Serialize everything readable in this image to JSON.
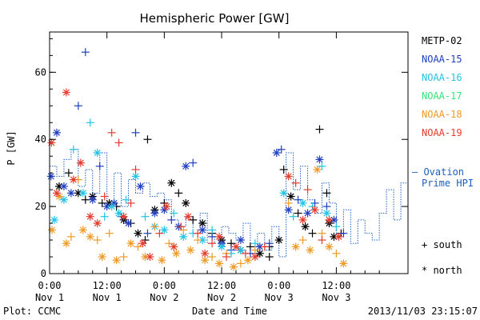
{
  "chart_data": {
    "type": "scatter",
    "title": "Hemispheric Power [GW]",
    "xlabel": "Date and Time",
    "ylabel": "P [GW]",
    "ylim": [
      0,
      72
    ],
    "xlim": [
      "2013-11-01 00:00",
      "2013-11-04 03:00"
    ],
    "y_ticks": [
      "0",
      "20",
      "40",
      "60"
    ],
    "x_ticks": [
      {
        "time": "0:00",
        "date": "Nov 1"
      },
      {
        "time": "12:00",
        "date": "Nov 1"
      },
      {
        "time": "0:00",
        "date": "Nov 2"
      },
      {
        "time": "12:00",
        "date": "Nov 2"
      },
      {
        "time": "0:00",
        "date": "Nov 3"
      },
      {
        "time": "12:00",
        "date": "Nov 3"
      }
    ],
    "footer_left": "Plot: CCMC",
    "footer_right": "2013/11/03 23:15:07",
    "grid": false,
    "legend_placement": "right",
    "legend": [
      {
        "name": "METP-02",
        "color": "#000000"
      },
      {
        "name": "NOAA-15",
        "color": "#1f3fbf"
      },
      {
        "name": "NOAA-16",
        "color": "#22c3e6"
      },
      {
        "name": "NOAA-17",
        "color": "#33e67a"
      },
      {
        "name": "NOAA-18",
        "color": "#ef9a26"
      },
      {
        "name": "NOAA-19",
        "color": "#e53b2c"
      }
    ],
    "model_legend": {
      "line1": "— Ovation",
      "line2": "Prime HPI",
      "color": "#1f5fbf"
    },
    "marker_legend": {
      "south": "+ south",
      "north": "* north"
    },
    "ovation_series": {
      "name": "Ovation Prime HPI",
      "x_hours": [
        0,
        1.5,
        3,
        4.5,
        6,
        7.5,
        9,
        10.5,
        12,
        13.5,
        15,
        16.5,
        18,
        19.5,
        21,
        22.5,
        24,
        25.5,
        27,
        28.5,
        30,
        31.5,
        33,
        34.5,
        36,
        37.5,
        39,
        40.5,
        42,
        43.5,
        45,
        46.5,
        48,
        49.5,
        51,
        52.5,
        54,
        55.5,
        57,
        58.5,
        60,
        61.5,
        63,
        64.5,
        66,
        67.5,
        69,
        70.5,
        72,
        73.5,
        75
      ],
      "values": [
        32,
        29,
        34,
        37,
        26,
        31,
        24,
        36,
        21,
        30,
        20,
        28,
        24,
        27,
        23,
        24,
        22,
        16,
        14,
        17,
        12,
        18,
        9,
        11,
        14,
        12,
        10,
        15,
        8,
        12,
        7,
        14,
        5,
        36,
        25,
        32,
        22,
        18,
        27,
        21,
        12,
        19,
        9,
        16,
        12,
        10,
        18,
        25,
        16,
        27,
        20
      ]
    },
    "series": [
      {
        "satellite": "METP-02",
        "color": "#000000",
        "points": [
          {
            "x": 2,
            "y": 26,
            "m": "*"
          },
          {
            "x": 4,
            "y": 30,
            "m": "+"
          },
          {
            "x": 6,
            "y": 24,
            "m": "*"
          },
          {
            "x": 7.5,
            "y": 22,
            "m": "+"
          },
          {
            "x": 9,
            "y": 23,
            "m": "*"
          },
          {
            "x": 11,
            "y": 21,
            "m": "+"
          },
          {
            "x": 12.5,
            "y": 21,
            "m": "*"
          },
          {
            "x": 14,
            "y": 20,
            "m": "+"
          },
          {
            "x": 15.5,
            "y": 16,
            "m": "*"
          },
          {
            "x": 17,
            "y": 15,
            "m": "+"
          },
          {
            "x": 18.5,
            "y": 12,
            "m": "*"
          },
          {
            "x": 20,
            "y": 10,
            "m": "+"
          },
          {
            "x": 20.5,
            "y": 40,
            "m": "+"
          },
          {
            "x": 22,
            "y": 19,
            "m": "*"
          },
          {
            "x": 24,
            "y": 21,
            "m": "+"
          },
          {
            "x": 25.5,
            "y": 27,
            "m": "*"
          },
          {
            "x": 27,
            "y": 24,
            "m": "+"
          },
          {
            "x": 28.5,
            "y": 21,
            "m": "*"
          },
          {
            "x": 30,
            "y": 16,
            "m": "+"
          },
          {
            "x": 32,
            "y": 15,
            "m": "*"
          },
          {
            "x": 34,
            "y": 12,
            "m": "+"
          },
          {
            "x": 36,
            "y": 10,
            "m": "*"
          },
          {
            "x": 38,
            "y": 9,
            "m": "+"
          },
          {
            "x": 40,
            "y": 7,
            "m": "*"
          },
          {
            "x": 42,
            "y": 8,
            "m": "+"
          },
          {
            "x": 44,
            "y": 6,
            "m": "*"
          },
          {
            "x": 46,
            "y": 8,
            "m": "+"
          },
          {
            "x": 48,
            "y": 10,
            "m": "*"
          },
          {
            "x": 49,
            "y": 31,
            "m": "+"
          },
          {
            "x": 50.5,
            "y": 23,
            "m": "*"
          },
          {
            "x": 52,
            "y": 18,
            "m": "+"
          },
          {
            "x": 53.5,
            "y": 14,
            "m": "*"
          },
          {
            "x": 55,
            "y": 12,
            "m": "+"
          },
          {
            "x": 56.5,
            "y": 43,
            "m": "+"
          },
          {
            "x": 58,
            "y": 24,
            "m": "+"
          },
          {
            "x": 59.5,
            "y": 11,
            "m": "*"
          },
          {
            "x": 61,
            "y": 12,
            "m": "+"
          },
          {
            "x": 58.5,
            "y": 15,
            "m": "*"
          },
          {
            "x": 46,
            "y": 5,
            "m": "+"
          }
        ]
      },
      {
        "satellite": "NOAA-15",
        "color": "#1f3fbf",
        "points": [
          {
            "x": 0.3,
            "y": 29,
            "m": "*"
          },
          {
            "x": 1.5,
            "y": 42,
            "m": "*"
          },
          {
            "x": 3,
            "y": 26,
            "m": "*"
          },
          {
            "x": 4.5,
            "y": 24,
            "m": "*"
          },
          {
            "x": 6,
            "y": 50,
            "m": "+"
          },
          {
            "x": 7.5,
            "y": 66,
            "m": "+"
          },
          {
            "x": 9,
            "y": 22,
            "m": "*"
          },
          {
            "x": 10.5,
            "y": 32,
            "m": "+"
          },
          {
            "x": 12,
            "y": 20,
            "m": "*"
          },
          {
            "x": 13.5,
            "y": 21,
            "m": "*"
          },
          {
            "x": 15,
            "y": 17,
            "m": "+"
          },
          {
            "x": 16.5,
            "y": 15,
            "m": "*"
          },
          {
            "x": 18,
            "y": 42,
            "m": "+"
          },
          {
            "x": 19,
            "y": 26,
            "m": "*"
          },
          {
            "x": 20.5,
            "y": 12,
            "m": "+"
          },
          {
            "x": 22,
            "y": 18,
            "m": "*"
          },
          {
            "x": 24,
            "y": 19,
            "m": "*"
          },
          {
            "x": 25.5,
            "y": 16,
            "m": "+"
          },
          {
            "x": 27,
            "y": 14,
            "m": "*"
          },
          {
            "x": 28.5,
            "y": 32,
            "m": "*"
          },
          {
            "x": 30,
            "y": 33,
            "m": "+"
          },
          {
            "x": 32,
            "y": 13,
            "m": "*"
          },
          {
            "x": 34,
            "y": 11,
            "m": "+"
          },
          {
            "x": 36,
            "y": 9,
            "m": "*"
          },
          {
            "x": 38,
            "y": 7,
            "m": "+"
          },
          {
            "x": 40,
            "y": 10,
            "m": "*"
          },
          {
            "x": 42,
            "y": 6,
            "m": "+"
          },
          {
            "x": 44,
            "y": 8,
            "m": "*"
          },
          {
            "x": 46,
            "y": 9,
            "m": "+"
          },
          {
            "x": 47.5,
            "y": 36,
            "m": "*"
          },
          {
            "x": 48.5,
            "y": 37,
            "m": "+"
          },
          {
            "x": 50,
            "y": 19,
            "m": "*"
          },
          {
            "x": 52,
            "y": 22,
            "m": "+"
          },
          {
            "x": 54,
            "y": 18,
            "m": "*"
          },
          {
            "x": 55.5,
            "y": 21,
            "m": "+"
          },
          {
            "x": 56.5,
            "y": 34,
            "m": "*"
          },
          {
            "x": 58,
            "y": 20,
            "m": "+"
          },
          {
            "x": 59.5,
            "y": 16,
            "m": "*"
          },
          {
            "x": 61.5,
            "y": 12,
            "m": "+"
          }
        ]
      },
      {
        "satellite": "NOAA-16",
        "color": "#22c3e6",
        "points": [
          {
            "x": 1,
            "y": 16,
            "m": "*"
          },
          {
            "x": 3,
            "y": 22,
            "m": "*"
          },
          {
            "x": 5,
            "y": 37,
            "m": "+"
          },
          {
            "x": 7,
            "y": 24,
            "m": "*"
          },
          {
            "x": 8.5,
            "y": 45,
            "m": "+"
          },
          {
            "x": 10,
            "y": 36,
            "m": "*"
          },
          {
            "x": 11.5,
            "y": 17,
            "m": "+"
          },
          {
            "x": 13,
            "y": 20,
            "m": "*"
          },
          {
            "x": 14.5,
            "y": 18,
            "m": "*"
          },
          {
            "x": 16,
            "y": 22,
            "m": "+"
          },
          {
            "x": 18,
            "y": 29,
            "m": "*"
          },
          {
            "x": 20,
            "y": 17,
            "m": "+"
          },
          {
            "x": 22,
            "y": 14,
            "m": "*"
          },
          {
            "x": 24,
            "y": 13,
            "m": "*"
          },
          {
            "x": 26,
            "y": 18,
            "m": "+"
          },
          {
            "x": 28,
            "y": 11,
            "m": "*"
          },
          {
            "x": 30,
            "y": 12,
            "m": "+"
          },
          {
            "x": 32,
            "y": 10,
            "m": "*"
          },
          {
            "x": 34,
            "y": 13,
            "m": "+"
          },
          {
            "x": 36,
            "y": 8,
            "m": "*"
          },
          {
            "x": 38,
            "y": 6,
            "m": "+"
          },
          {
            "x": 40,
            "y": 7,
            "m": "*"
          },
          {
            "x": 43,
            "y": 9,
            "m": "+"
          },
          {
            "x": 49,
            "y": 24,
            "m": "*"
          },
          {
            "x": 51,
            "y": 17,
            "m": "+"
          },
          {
            "x": 53,
            "y": 21,
            "m": "*"
          },
          {
            "x": 55,
            "y": 20,
            "m": "+"
          },
          {
            "x": 57,
            "y": 32,
            "m": "+"
          },
          {
            "x": 58,
            "y": 18,
            "m": "*"
          },
          {
            "x": 60,
            "y": 14,
            "m": "+"
          }
        ]
      },
      {
        "satellite": "NOAA-18",
        "color": "#ef9a26",
        "points": [
          {
            "x": 0.5,
            "y": 13,
            "m": "*"
          },
          {
            "x": 2,
            "y": 23,
            "m": "*"
          },
          {
            "x": 3.5,
            "y": 9,
            "m": "*"
          },
          {
            "x": 4.5,
            "y": 11,
            "m": "+"
          },
          {
            "x": 6,
            "y": 28,
            "m": "+"
          },
          {
            "x": 7,
            "y": 13,
            "m": "*"
          },
          {
            "x": 8.5,
            "y": 11,
            "m": "*"
          },
          {
            "x": 10,
            "y": 10,
            "m": "+"
          },
          {
            "x": 11,
            "y": 5,
            "m": "*"
          },
          {
            "x": 12.5,
            "y": 12,
            "m": "+"
          },
          {
            "x": 14,
            "y": 4,
            "m": "*"
          },
          {
            "x": 15.5,
            "y": 5,
            "m": "+"
          },
          {
            "x": 17,
            "y": 9,
            "m": "*"
          },
          {
            "x": 18.5,
            "y": 8,
            "m": "+"
          },
          {
            "x": 20,
            "y": 5,
            "m": "*"
          },
          {
            "x": 22,
            "y": 14,
            "m": "+"
          },
          {
            "x": 23.5,
            "y": 4,
            "m": "*"
          },
          {
            "x": 25,
            "y": 9,
            "m": "+"
          },
          {
            "x": 26.5,
            "y": 6,
            "m": "*"
          },
          {
            "x": 28,
            "y": 13,
            "m": "+"
          },
          {
            "x": 29.5,
            "y": 7,
            "m": "*"
          },
          {
            "x": 31,
            "y": 10,
            "m": "+"
          },
          {
            "x": 32.5,
            "y": 4,
            "m": "*"
          },
          {
            "x": 34,
            "y": 5,
            "m": "+"
          },
          {
            "x": 35.5,
            "y": 3,
            "m": "*"
          },
          {
            "x": 37,
            "y": 6,
            "m": "+"
          },
          {
            "x": 38.5,
            "y": 2,
            "m": "*"
          },
          {
            "x": 40,
            "y": 3,
            "m": "+"
          },
          {
            "x": 41.5,
            "y": 4,
            "m": "*"
          },
          {
            "x": 43,
            "y": 7,
            "m": "+"
          },
          {
            "x": 50,
            "y": 21,
            "m": "+"
          },
          {
            "x": 51.5,
            "y": 8,
            "m": "*"
          },
          {
            "x": 53,
            "y": 10,
            "m": "+"
          },
          {
            "x": 54.5,
            "y": 7,
            "m": "*"
          },
          {
            "x": 56,
            "y": 31,
            "m": "*"
          },
          {
            "x": 57,
            "y": 12,
            "m": "+"
          },
          {
            "x": 58.5,
            "y": 8,
            "m": "*"
          },
          {
            "x": 60,
            "y": 6,
            "m": "+"
          },
          {
            "x": 61.5,
            "y": 3,
            "m": "*"
          }
        ]
      },
      {
        "satellite": "NOAA-19",
        "color": "#e53b2c",
        "points": [
          {
            "x": 0.4,
            "y": 39,
            "m": "*"
          },
          {
            "x": 1.5,
            "y": 24,
            "m": "*"
          },
          {
            "x": 3.5,
            "y": 54,
            "m": "*"
          },
          {
            "x": 5,
            "y": 28,
            "m": "*"
          },
          {
            "x": 6.5,
            "y": 33,
            "m": "*"
          },
          {
            "x": 8.5,
            "y": 17,
            "m": "*"
          },
          {
            "x": 10,
            "y": 15,
            "m": "*"
          },
          {
            "x": 11.5,
            "y": 23,
            "m": "+"
          },
          {
            "x": 13,
            "y": 42,
            "m": "+"
          },
          {
            "x": 14.5,
            "y": 39,
            "m": "+"
          },
          {
            "x": 15.5,
            "y": 17,
            "m": "*"
          },
          {
            "x": 17,
            "y": 21,
            "m": "+"
          },
          {
            "x": 18,
            "y": 31,
            "m": "+"
          },
          {
            "x": 19.5,
            "y": 9,
            "m": "*"
          },
          {
            "x": 21,
            "y": 5,
            "m": "*"
          },
          {
            "x": 23,
            "y": 12,
            "m": "+"
          },
          {
            "x": 24.5,
            "y": 20,
            "m": "*"
          },
          {
            "x": 26,
            "y": 8,
            "m": "*"
          },
          {
            "x": 27.5,
            "y": 14,
            "m": "+"
          },
          {
            "x": 29,
            "y": 17,
            "m": "*"
          },
          {
            "x": 31,
            "y": 12,
            "m": "+"
          },
          {
            "x": 32.5,
            "y": 6,
            "m": "*"
          },
          {
            "x": 34,
            "y": 9,
            "m": "+"
          },
          {
            "x": 35.5,
            "y": 11,
            "m": "*"
          },
          {
            "x": 37,
            "y": 5,
            "m": "+"
          },
          {
            "x": 39,
            "y": 8,
            "m": "*"
          },
          {
            "x": 41,
            "y": 6,
            "m": "+"
          },
          {
            "x": 43,
            "y": 5,
            "m": "*"
          },
          {
            "x": 45,
            "y": 8,
            "m": "+"
          },
          {
            "x": 50,
            "y": 29,
            "m": "*"
          },
          {
            "x": 51.5,
            "y": 27,
            "m": "+"
          },
          {
            "x": 53,
            "y": 16,
            "m": "*"
          },
          {
            "x": 54,
            "y": 25,
            "m": "+"
          },
          {
            "x": 55.5,
            "y": 19,
            "m": "*"
          },
          {
            "x": 57,
            "y": 10,
            "m": "+"
          },
          {
            "x": 58.5,
            "y": 16,
            "m": "*"
          },
          {
            "x": 60.5,
            "y": 11,
            "m": "*"
          }
        ]
      }
    ]
  }
}
